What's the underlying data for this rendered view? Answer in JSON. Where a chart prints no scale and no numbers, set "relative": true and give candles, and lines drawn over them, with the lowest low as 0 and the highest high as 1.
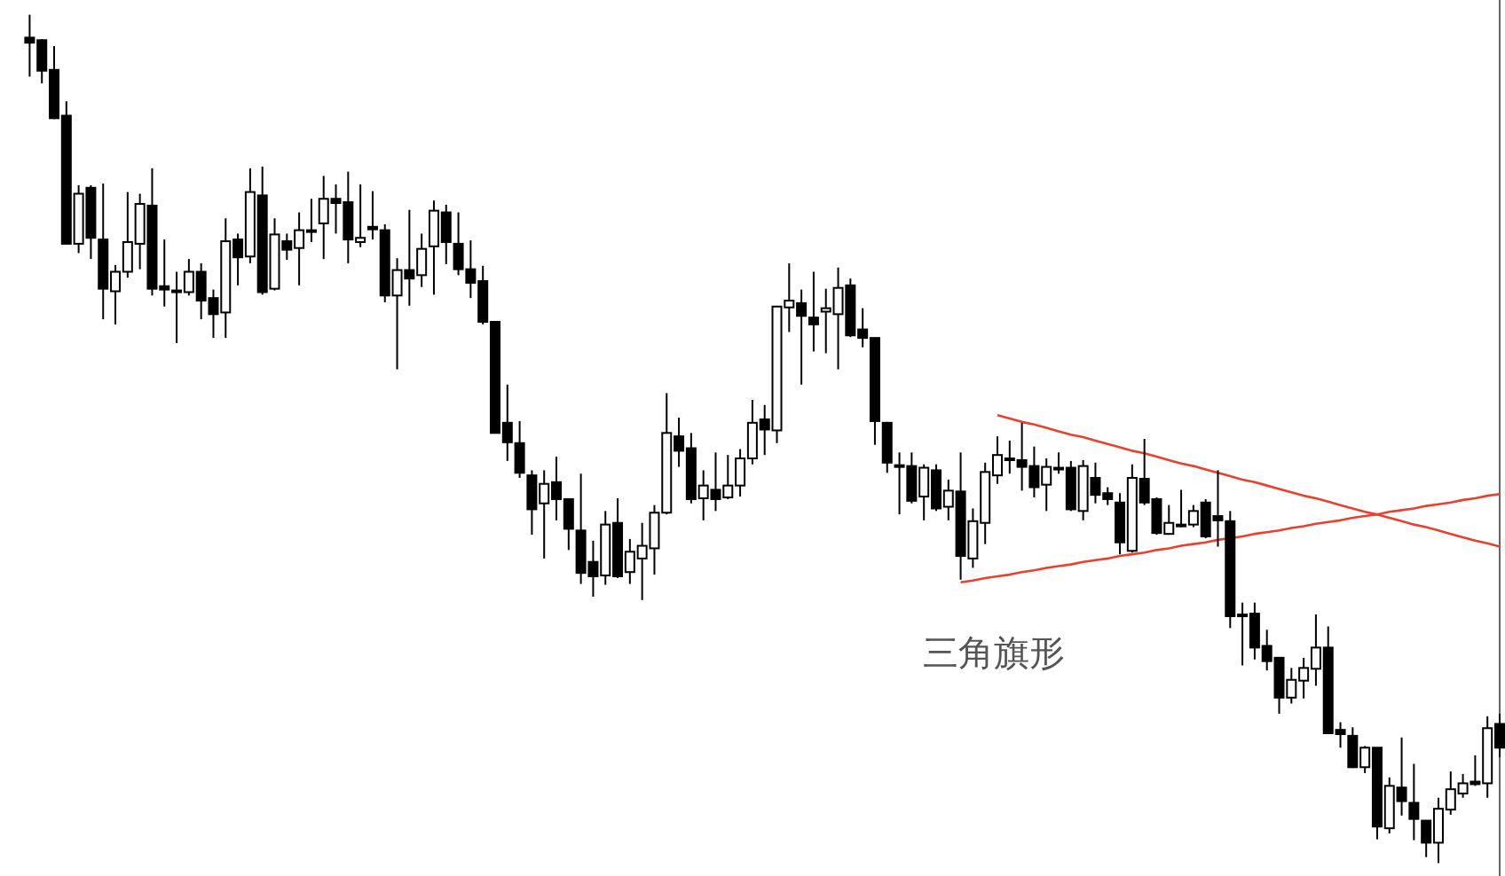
{
  "chart_data": {
    "type": "candlestick",
    "relative": true,
    "categories": [
      null,
      null,
      null,
      null,
      null,
      null,
      null,
      null,
      null,
      null,
      null,
      null,
      null,
      null,
      null,
      null,
      null,
      null,
      null,
      null,
      null,
      null,
      null,
      null,
      null,
      null,
      null,
      null,
      null,
      null,
      null,
      null,
      null,
      null,
      null,
      null,
      null,
      null,
      null,
      null,
      null,
      null,
      null,
      null,
      null,
      null,
      null,
      null,
      null,
      null,
      null,
      null,
      null,
      null,
      null,
      null,
      null,
      null,
      null,
      null,
      null,
      null,
      null,
      null,
      null,
      null,
      null,
      null,
      null,
      null,
      null,
      null,
      null,
      null,
      null,
      null,
      null,
      null,
      null,
      null,
      null,
      null,
      null,
      null,
      null,
      null,
      null,
      null,
      null,
      null,
      null,
      null,
      null,
      null,
      null,
      null,
      null,
      null,
      null,
      null,
      null,
      null,
      null,
      null,
      null,
      null,
      null,
      null,
      null,
      null,
      null,
      null,
      null,
      null,
      null,
      null,
      null,
      null,
      null,
      null,
      null
    ],
    "ohlc": [
      [
        0.973,
        1.0,
        0.927,
        0.967
      ],
      [
        0.97,
        0.971,
        0.919,
        0.934
      ],
      [
        0.935,
        0.963,
        0.877,
        0.878
      ],
      [
        0.881,
        0.898,
        0.73,
        0.73
      ],
      [
        0.73,
        0.799,
        0.719,
        0.789
      ],
      [
        0.796,
        0.799,
        0.712,
        0.737
      ],
      [
        0.735,
        0.801,
        0.641,
        0.677
      ],
      [
        0.674,
        0.705,
        0.635,
        0.697
      ],
      [
        0.697,
        0.791,
        0.69,
        0.732
      ],
      [
        0.73,
        0.789,
        0.7,
        0.777
      ],
      [
        0.775,
        0.819,
        0.669,
        0.677
      ],
      [
        0.68,
        0.735,
        0.656,
        0.676
      ],
      [
        0.675,
        0.697,
        0.613,
        0.674
      ],
      [
        0.673,
        0.712,
        0.669,
        0.697
      ],
      [
        0.697,
        0.707,
        0.641,
        0.663
      ],
      [
        0.666,
        0.676,
        0.619,
        0.647
      ],
      [
        0.649,
        0.76,
        0.619,
        0.733
      ],
      [
        0.735,
        0.742,
        0.681,
        0.714
      ],
      [
        0.715,
        0.819,
        0.707,
        0.791
      ],
      [
        0.787,
        0.821,
        0.67,
        0.673
      ],
      [
        0.677,
        0.76,
        0.675,
        0.741
      ],
      [
        0.733,
        0.742,
        0.711,
        0.723
      ],
      [
        0.725,
        0.767,
        0.681,
        0.746
      ],
      [
        0.746,
        0.783,
        0.732,
        0.745
      ],
      [
        0.754,
        0.81,
        0.712,
        0.783
      ],
      [
        0.783,
        0.8,
        0.742,
        0.778
      ],
      [
        0.779,
        0.815,
        0.707,
        0.735
      ],
      [
        0.732,
        0.8,
        0.726,
        0.737
      ],
      [
        0.75,
        0.792,
        0.735,
        0.747
      ],
      [
        0.746,
        0.753,
        0.661,
        0.669
      ],
      [
        0.669,
        0.713,
        0.582,
        0.699
      ],
      [
        0.699,
        0.77,
        0.657,
        0.689
      ],
      [
        0.693,
        0.742,
        0.679,
        0.724
      ],
      [
        0.727,
        0.781,
        0.67,
        0.769
      ],
      [
        0.767,
        0.776,
        0.706,
        0.732
      ],
      [
        0.73,
        0.767,
        0.693,
        0.7
      ],
      [
        0.7,
        0.734,
        0.666,
        0.684
      ],
      [
        0.686,
        0.704,
        0.635,
        0.638
      ],
      [
        0.638,
        0.638,
        0.507,
        0.507
      ],
      [
        0.519,
        0.564,
        0.474,
        0.496
      ],
      [
        0.495,
        0.521,
        0.454,
        0.46
      ],
      [
        0.457,
        0.463,
        0.387,
        0.417
      ],
      [
        0.424,
        0.463,
        0.359,
        0.447
      ],
      [
        0.449,
        0.479,
        0.404,
        0.429
      ],
      [
        0.429,
        0.429,
        0.369,
        0.394
      ],
      [
        0.392,
        0.459,
        0.329,
        0.342
      ],
      [
        0.355,
        0.38,
        0.314,
        0.338
      ],
      [
        0.339,
        0.415,
        0.328,
        0.399
      ],
      [
        0.401,
        0.43,
        0.336,
        0.338
      ],
      [
        0.343,
        0.382,
        0.329,
        0.367
      ],
      [
        0.359,
        0.401,
        0.31,
        0.374
      ],
      [
        0.371,
        0.422,
        0.34,
        0.413
      ],
      [
        0.413,
        0.554,
        0.411,
        0.507
      ],
      [
        0.503,
        0.525,
        0.467,
        0.486
      ],
      [
        0.489,
        0.507,
        0.424,
        0.429
      ],
      [
        0.43,
        0.463,
        0.404,
        0.445
      ],
      [
        0.44,
        0.484,
        0.415,
        0.429
      ],
      [
        0.431,
        0.481,
        0.429,
        0.445
      ],
      [
        0.445,
        0.488,
        0.432,
        0.477
      ],
      [
        0.477,
        0.546,
        0.47,
        0.519
      ],
      [
        0.523,
        0.54,
        0.481,
        0.511
      ],
      [
        0.51,
        0.656,
        0.495,
        0.656
      ],
      [
        0.655,
        0.707,
        0.626,
        0.663
      ],
      [
        0.66,
        0.676,
        0.564,
        0.645
      ],
      [
        0.643,
        0.697,
        0.603,
        0.635
      ],
      [
        0.65,
        0.677,
        0.601,
        0.654
      ],
      [
        0.647,
        0.702,
        0.582,
        0.678
      ],
      [
        0.681,
        0.689,
        0.62,
        0.622
      ],
      [
        0.629,
        0.654,
        0.608,
        0.619
      ],
      [
        0.619,
        0.619,
        0.493,
        0.521
      ],
      [
        0.519,
        0.52,
        0.46,
        0.472
      ],
      [
        0.469,
        0.484,
        0.411,
        0.469
      ],
      [
        0.468,
        0.484,
        0.424,
        0.427
      ],
      [
        0.432,
        0.47,
        0.404,
        0.466
      ],
      [
        0.463,
        0.47,
        0.415,
        0.418
      ],
      [
        0.42,
        0.452,
        0.404,
        0.439
      ],
      [
        0.438,
        0.484,
        0.334,
        0.362
      ],
      [
        0.359,
        0.418,
        0.348,
        0.403
      ],
      [
        0.401,
        0.472,
        0.376,
        0.461
      ],
      [
        0.457,
        0.503,
        0.447,
        0.481
      ],
      [
        0.477,
        0.498,
        0.459,
        0.477
      ],
      [
        0.475,
        0.519,
        0.439,
        0.467
      ],
      [
        0.468,
        0.491,
        0.431,
        0.443
      ],
      [
        0.446,
        0.477,
        0.415,
        0.467
      ],
      [
        0.466,
        0.484,
        0.459,
        0.466
      ],
      [
        0.466,
        0.474,
        0.415,
        0.417
      ],
      [
        0.415,
        0.475,
        0.404,
        0.468
      ],
      [
        0.454,
        0.472,
        0.424,
        0.434
      ],
      [
        0.436,
        0.443,
        0.422,
        0.429
      ],
      [
        0.425,
        0.436,
        0.364,
        0.378
      ],
      [
        0.368,
        0.47,
        0.366,
        0.454
      ],
      [
        0.453,
        0.5,
        0.422,
        0.425
      ],
      [
        0.429,
        0.431,
        0.387,
        0.389
      ],
      [
        0.388,
        0.422,
        0.387,
        0.401
      ],
      [
        0.399,
        0.44,
        0.396,
        0.399
      ],
      [
        0.399,
        0.422,
        0.396,
        0.415
      ],
      [
        0.425,
        0.429,
        0.383,
        0.385
      ],
      [
        0.409,
        0.463,
        0.373,
        0.404
      ],
      [
        0.403,
        0.415,
        0.277,
        0.291
      ],
      [
        0.293,
        0.307,
        0.233,
        0.293
      ],
      [
        0.294,
        0.307,
        0.24,
        0.254
      ],
      [
        0.256,
        0.275,
        0.227,
        0.238
      ],
      [
        0.242,
        0.242,
        0.176,
        0.195
      ],
      [
        0.195,
        0.23,
        0.188,
        0.216
      ],
      [
        0.215,
        0.242,
        0.194,
        0.23
      ],
      [
        0.229,
        0.293,
        0.209,
        0.254
      ],
      [
        0.254,
        0.279,
        0.153,
        0.153
      ],
      [
        0.157,
        0.166,
        0.136,
        0.152
      ],
      [
        0.15,
        0.16,
        0.112,
        0.113
      ],
      [
        0.113,
        0.138,
        0.106,
        0.136
      ],
      [
        0.136,
        0.136,
        0.028,
        0.043
      ],
      [
        0.041,
        0.101,
        0.035,
        0.091
      ],
      [
        0.089,
        0.148,
        0.056,
        0.073
      ],
      [
        0.071,
        0.117,
        0.027,
        0.052
      ],
      [
        0.05,
        0.05,
        0.007,
        0.024
      ],
      [
        0.024,
        0.077,
        0.0,
        0.064
      ],
      [
        0.063,
        0.108,
        0.057,
        0.087
      ],
      [
        0.082,
        0.105,
        0.077,
        0.094
      ],
      [
        0.096,
        0.127,
        0.091,
        0.093
      ],
      [
        0.094,
        0.173,
        0.077,
        0.159
      ],
      [
        0.164,
        0.176,
        0.125,
        0.136
      ]
    ],
    "series": [
      {
        "type": "line",
        "color": "#e8412f",
        "values": [
          null,
          null,
          null,
          null,
          null,
          null,
          null,
          null,
          null,
          null,
          null,
          null,
          null,
          null,
          null,
          null,
          null,
          null,
          null,
          null,
          null,
          null,
          null,
          null,
          null,
          null,
          null,
          null,
          null,
          null,
          null,
          null,
          null,
          null,
          null,
          null,
          null,
          null,
          null,
          null,
          null,
          null,
          null,
          null,
          null,
          null,
          null,
          null,
          null,
          null,
          null,
          null,
          null,
          null,
          null,
          null,
          null,
          null,
          null,
          null,
          null,
          null,
          null,
          null,
          null,
          null,
          null,
          null,
          null,
          null,
          null,
          null,
          null,
          null,
          null,
          null,
          null,
          null,
          null,
          0.528,
          0.524,
          0.52,
          0.517,
          0.513,
          0.509,
          0.505,
          0.502,
          0.498,
          0.494,
          0.49,
          0.486,
          0.483,
          0.479,
          0.475,
          0.471,
          0.468,
          0.464,
          0.46,
          0.456,
          0.452,
          0.449,
          0.445,
          0.441,
          0.437,
          0.433,
          0.43,
          0.426,
          0.422,
          0.418,
          0.414,
          0.411,
          0.407,
          0.403,
          0.399,
          0.396,
          0.392,
          0.388,
          0.384,
          0.38,
          0.377,
          0.373
        ]
      },
      {
        "type": "line",
        "color": "#e8412f",
        "values": [
          null,
          null,
          null,
          null,
          null,
          null,
          null,
          null,
          null,
          null,
          null,
          null,
          null,
          null,
          null,
          null,
          null,
          null,
          null,
          null,
          null,
          null,
          null,
          null,
          null,
          null,
          null,
          null,
          null,
          null,
          null,
          null,
          null,
          null,
          null,
          null,
          null,
          null,
          null,
          null,
          null,
          null,
          null,
          null,
          null,
          null,
          null,
          null,
          null,
          null,
          null,
          null,
          null,
          null,
          null,
          null,
          null,
          null,
          null,
          null,
          null,
          null,
          null,
          null,
          null,
          null,
          null,
          null,
          null,
          null,
          null,
          null,
          null,
          null,
          null,
          null,
          0.331,
          0.333,
          0.336,
          0.338,
          0.34,
          0.343,
          0.345,
          0.348,
          0.35,
          0.352,
          0.355,
          0.357,
          0.359,
          0.362,
          0.364,
          0.366,
          0.369,
          0.371,
          0.374,
          0.376,
          0.378,
          0.381,
          0.383,
          0.385,
          0.388,
          0.39,
          0.392,
          0.395,
          0.397,
          0.4,
          0.402,
          0.404,
          0.407,
          0.409,
          0.411,
          0.414,
          0.416,
          0.418,
          0.421,
          0.423,
          0.425,
          0.428,
          0.43,
          0.433,
          0.435
        ]
      }
    ],
    "annotations": [
      "三角旗形"
    ]
  }
}
